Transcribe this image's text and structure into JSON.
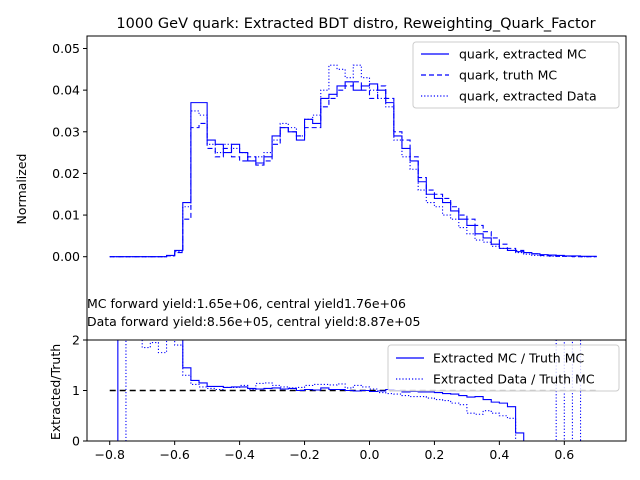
{
  "chart_data": [
    {
      "type": "line",
      "title": "1000 GeV quark: Extracted BDT distro, Reweighting_Quark_Factor",
      "xlabel": "",
      "ylabel": "Normalized",
      "xlim": [
        -0.87,
        0.79
      ],
      "ylim": [
        -0.02,
        0.053
      ],
      "yticks": [
        "0.00",
        "0.01",
        "0.02",
        "0.03",
        "0.04",
        "0.05"
      ],
      "ytick_values": [
        0.0,
        0.01,
        0.02,
        0.03,
        0.04,
        0.05
      ],
      "legend_position": "top-right",
      "annotations": [
        "MC forward yield:1.65e+06, central yield1.76e+06",
        "Data forward yield:8.56e+05, central yield:8.87e+05"
      ],
      "x_edges": [
        -0.8,
        -0.775,
        -0.75,
        -0.725,
        -0.7,
        -0.675,
        -0.65,
        -0.625,
        -0.6,
        -0.575,
        -0.55,
        -0.525,
        -0.5,
        -0.475,
        -0.45,
        -0.425,
        -0.4,
        -0.375,
        -0.35,
        -0.325,
        -0.3,
        -0.275,
        -0.25,
        -0.225,
        -0.2,
        -0.175,
        -0.15,
        -0.125,
        -0.1,
        -0.075,
        -0.05,
        -0.025,
        0.0,
        0.025,
        0.05,
        0.075,
        0.1,
        0.125,
        0.15,
        0.175,
        0.2,
        0.225,
        0.25,
        0.275,
        0.3,
        0.325,
        0.35,
        0.375,
        0.4,
        0.425,
        0.45,
        0.475,
        0.5,
        0.525,
        0.55,
        0.575,
        0.6,
        0.625,
        0.65,
        0.675,
        0.7
      ],
      "series": [
        {
          "name": "quark, extracted MC",
          "style": "solid",
          "color": "#0000ff",
          "values": [
            0.0,
            0.0,
            0.0,
            0.0,
            0.0,
            0.0,
            0.0,
            0.0003,
            0.0015,
            0.013,
            0.037,
            0.037,
            0.028,
            0.027,
            0.025,
            0.027,
            0.025,
            0.023,
            0.0225,
            0.024,
            0.029,
            0.031,
            0.03,
            0.028,
            0.033,
            0.032,
            0.038,
            0.039,
            0.041,
            0.042,
            0.04,
            0.041,
            0.0415,
            0.04,
            0.037,
            0.029,
            0.026,
            0.023,
            0.018,
            0.015,
            0.014,
            0.013,
            0.011,
            0.009,
            0.0075,
            0.0055,
            0.0045,
            0.003,
            0.002,
            0.0015,
            0.0012,
            0.001,
            0.0007,
            0.0005,
            0.0004,
            0.0003,
            0.0002,
            0.0002,
            0.0001,
            0.0001
          ]
        },
        {
          "name": "quark, truth MC",
          "style": "dashed",
          "color": "#0000ff",
          "values": [
            0.0,
            0.0,
            0.0,
            0.0,
            0.0,
            0.0,
            0.0,
            0.0002,
            0.001,
            0.009,
            0.031,
            0.032,
            0.026,
            0.024,
            0.026,
            0.024,
            0.023,
            0.024,
            0.022,
            0.023,
            0.027,
            0.031,
            0.03,
            0.029,
            0.031,
            0.031,
            0.036,
            0.038,
            0.04,
            0.041,
            0.042,
            0.04,
            0.038,
            0.041,
            0.038,
            0.03,
            0.028,
            0.024,
            0.019,
            0.016,
            0.015,
            0.014,
            0.012,
            0.01,
            0.009,
            0.0075,
            0.006,
            0.0045,
            0.003,
            0.002,
            0.0015,
            0.001,
            0.0007,
            0.0003,
            0.0002,
            0.0001,
            0.0001,
            0.0,
            0.0,
            0.0
          ]
        },
        {
          "name": "quark, extracted Data",
          "style": "dotted",
          "color": "#0000ff",
          "values": [
            0.0,
            0.0,
            0.0,
            0.0,
            0.0,
            0.0,
            0.0,
            0.0002,
            0.0012,
            0.012,
            0.035,
            0.034,
            0.027,
            0.025,
            0.027,
            0.026,
            0.025,
            0.023,
            0.024,
            0.025,
            0.028,
            0.032,
            0.031,
            0.029,
            0.033,
            0.034,
            0.04,
            0.046,
            0.045,
            0.043,
            0.046,
            0.043,
            0.04,
            0.038,
            0.036,
            0.028,
            0.024,
            0.021,
            0.016,
            0.013,
            0.012,
            0.01,
            0.009,
            0.007,
            0.0055,
            0.004,
            0.0035,
            0.0025,
            0.002,
            0.0015,
            0.001,
            0.0006,
            0.0003,
            0.0002,
            0.0001,
            0.0001,
            0.0001,
            0.0001,
            0.0,
            0.0
          ]
        }
      ]
    },
    {
      "type": "line",
      "title": "",
      "xlabel": "",
      "ylabel": "Extracted/Truth",
      "xlim": [
        -0.87,
        0.79
      ],
      "ylim": [
        0,
        2
      ],
      "yticks": [
        "0",
        "1",
        "2"
      ],
      "ytick_values": [
        0,
        1,
        2
      ],
      "xticks": [
        "−0.8",
        "−0.6",
        "−0.4",
        "−0.2",
        "0.0",
        "0.2",
        "0.4",
        "0.6"
      ],
      "xtick_values": [
        -0.8,
        -0.6,
        -0.4,
        -0.2,
        0.0,
        0.2,
        0.4,
        0.6
      ],
      "reference_line": 1,
      "legend_position": "top-right",
      "x_edges": [
        -0.8,
        -0.775,
        -0.75,
        -0.725,
        -0.7,
        -0.675,
        -0.65,
        -0.625,
        -0.6,
        -0.575,
        -0.55,
        -0.525,
        -0.5,
        -0.475,
        -0.45,
        -0.425,
        -0.4,
        -0.375,
        -0.35,
        -0.325,
        -0.3,
        -0.275,
        -0.25,
        -0.225,
        -0.2,
        -0.175,
        -0.15,
        -0.125,
        -0.1,
        -0.075,
        -0.05,
        -0.025,
        0.0,
        0.025,
        0.05,
        0.075,
        0.1,
        0.125,
        0.15,
        0.175,
        0.2,
        0.225,
        0.25,
        0.275,
        0.3,
        0.325,
        0.35,
        0.375,
        0.4,
        0.425,
        0.45,
        0.475,
        0.5,
        0.525,
        0.55,
        0.575,
        0.6,
        0.625,
        0.65,
        0.675,
        0.7
      ],
      "series": [
        {
          "name": "Extracted MC / Truth MC",
          "style": "solid",
          "color": "#0000ff",
          "values": [
            0.0,
            2.3,
            2.3,
            2.3,
            2.3,
            2.3,
            2.3,
            2.3,
            2.3,
            1.45,
            1.2,
            1.15,
            1.08,
            1.08,
            1.06,
            1.07,
            1.07,
            1.04,
            1.03,
            1.04,
            1.05,
            1.03,
            1.04,
            1.0,
            1.02,
            1.01,
            1.05,
            1.02,
            1.02,
            1.0,
            0.99,
            1.0,
            0.98,
            0.99,
            1.02,
            1.0,
            0.97,
            0.98,
            0.97,
            0.97,
            0.96,
            0.94,
            0.93,
            0.9,
            0.87,
            0.88,
            0.82,
            0.77,
            0.75,
            0.68,
            0.16,
            0.0,
            0.0,
            0.0,
            0.0,
            0.0,
            0.0,
            0.0,
            0.0,
            0.0
          ]
        },
        {
          "name": "Extracted Data / Truth MC",
          "style": "dotted",
          "color": "#0000ff",
          "values": [
            0.0,
            0.0,
            2.0,
            2.2,
            1.85,
            1.95,
            1.75,
            2.3,
            1.9,
            1.3,
            1.12,
            1.07,
            1.04,
            1.02,
            1.06,
            1.06,
            1.1,
            1.02,
            1.14,
            1.15,
            1.1,
            1.07,
            1.05,
            1.06,
            1.1,
            1.12,
            1.12,
            1.11,
            1.13,
            1.05,
            1.1,
            1.07,
            1.03,
            0.96,
            0.94,
            0.93,
            0.9,
            0.88,
            0.88,
            0.85,
            0.82,
            0.8,
            0.75,
            0.72,
            0.55,
            0.53,
            0.6,
            0.55,
            0.5,
            0.45,
            0.0,
            0.0,
            0.0,
            0.0,
            0.0,
            2.3,
            0.0,
            2.3,
            0.0,
            0.0
          ]
        }
      ]
    }
  ]
}
